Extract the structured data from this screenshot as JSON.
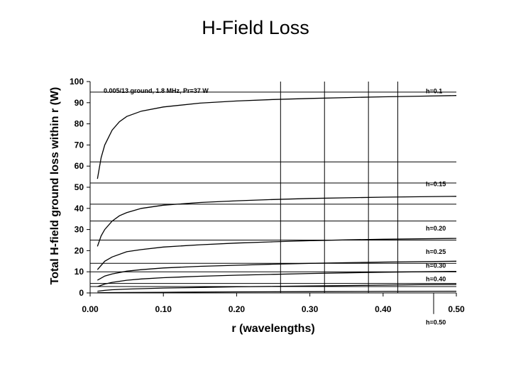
{
  "chart_data": {
    "type": "line",
    "title": "H-Field Loss",
    "xlabel": "r (wavelengths)",
    "ylabel": "Total H-field ground loss within r (W)",
    "xlim": [
      0,
      0.5
    ],
    "ylim": [
      0,
      100
    ],
    "x_ticks": [
      "0.00",
      "0.10",
      "0.20",
      "0.30",
      "0.40",
      "0.50"
    ],
    "y_ticks": [
      "0",
      "10",
      "20",
      "30",
      "40",
      "50",
      "60",
      "70",
      "80",
      "90",
      "100"
    ],
    "annotation": "0.005/13 ground, 1.8 MHz, Pr=37 W",
    "grid": "horizontal lines at y = 3, 4.5, 10, 14, 25, 34, 42, 52, 62, 95; vertical lines at x = 0.26, 0.32, 0.38, 0.42",
    "hgrid": [
      3,
      4.5,
      10,
      14,
      25,
      34,
      42,
      52,
      62,
      95
    ],
    "vgrid": [
      0.26,
      0.32,
      0.38,
      0.42
    ],
    "series": [
      {
        "name": "h=0.1",
        "label_y": 95.5,
        "x": [
          0.01,
          0.015,
          0.02,
          0.03,
          0.04,
          0.05,
          0.07,
          0.1,
          0.15,
          0.2,
          0.25,
          0.3,
          0.35,
          0.4,
          0.45,
          0.5
        ],
        "y": [
          54,
          64,
          70,
          77,
          81,
          83.5,
          86,
          88,
          89.8,
          90.8,
          91.5,
          92,
          92.4,
          92.8,
          93.1,
          93.4
        ]
      },
      {
        "name": "h=0.15",
        "label_y": 51.5,
        "x": [
          0.01,
          0.015,
          0.02,
          0.03,
          0.04,
          0.05,
          0.07,
          0.1,
          0.15,
          0.2,
          0.25,
          0.3,
          0.35,
          0.4,
          0.45,
          0.5
        ],
        "y": [
          22,
          27,
          30,
          34,
          36.5,
          38,
          40,
          41.5,
          42.8,
          43.6,
          44.2,
          44.7,
          45,
          45.3,
          45.5,
          45.7
        ]
      },
      {
        "name": "h=0.20",
        "label_y": 30.5,
        "x": [
          0.01,
          0.02,
          0.03,
          0.05,
          0.07,
          0.1,
          0.15,
          0.2,
          0.25,
          0.3,
          0.35,
          0.4,
          0.45,
          0.5
        ],
        "y": [
          11,
          15,
          17,
          19.5,
          20.5,
          21.7,
          22.8,
          23.6,
          24.2,
          24.7,
          25.1,
          25.4,
          25.6,
          25.8
        ]
      },
      {
        "name": "h=0.25",
        "label_y": 19.5,
        "x": [
          0.01,
          0.02,
          0.03,
          0.05,
          0.07,
          0.1,
          0.15,
          0.2,
          0.25,
          0.3,
          0.35,
          0.4,
          0.45,
          0.5
        ],
        "y": [
          6,
          8,
          9,
          10.3,
          11,
          11.8,
          12.6,
          13.1,
          13.6,
          14,
          14.3,
          14.6,
          14.8,
          15
        ]
      },
      {
        "name": "h=0.30",
        "label_y": 13,
        "x": [
          0.01,
          0.02,
          0.03,
          0.05,
          0.07,
          0.1,
          0.15,
          0.2,
          0.25,
          0.3,
          0.35,
          0.4,
          0.45,
          0.5
        ],
        "y": [
          3,
          4.2,
          5,
          6,
          6.6,
          7.2,
          7.9,
          8.4,
          8.8,
          9.2,
          9.5,
          9.8,
          10,
          10.2
        ]
      },
      {
        "name": "h=0.40",
        "label_y": 6.5,
        "x": [
          0.01,
          0.02,
          0.03,
          0.05,
          0.1,
          0.15,
          0.2,
          0.25,
          0.3,
          0.35,
          0.4,
          0.45,
          0.5
        ],
        "y": [
          0.8,
          1.2,
          1.5,
          1.8,
          2.3,
          2.6,
          2.9,
          3.1,
          3.3,
          3.5,
          3.7,
          3.9,
          4
        ]
      },
      {
        "name": "h=0.50",
        "label_y": -14,
        "x": [
          0.01,
          0.05,
          0.1,
          0.2,
          0.3,
          0.4,
          0.5
        ],
        "y": [
          0.1,
          0.2,
          0.3,
          0.5,
          0.6,
          0.7,
          0.8
        ]
      }
    ]
  }
}
